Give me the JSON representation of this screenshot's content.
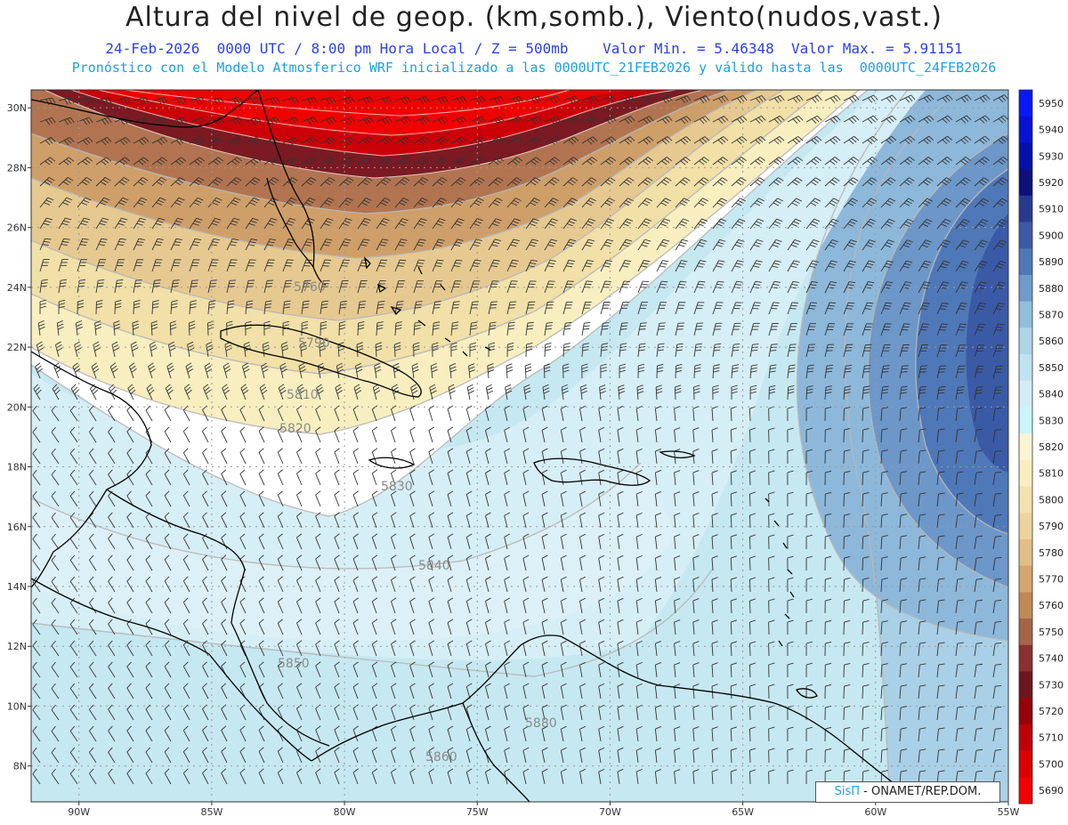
{
  "title": "Altura del nivel de geop. (km,somb.), Viento(nudos,vast.)",
  "subtitle1": "24-Feb-2026  0000 UTC / 8:00 pm Hora Local / Z = 500mb    Valor Min. = 5.46348  Valor Max. = 5.91151",
  "subtitle2": "Pronóstico con el Modelo Atmosferico WRF inicializado a las 0000UTC_21FEB2026 y válido hasta las  0000UTC_24FEB2026",
  "credit": {
    "brand": "SisΠ",
    "text": "- ONAMET/REP.DOM."
  },
  "axes": {
    "lat_ticks": [
      "30N",
      "28N",
      "26N",
      "24N",
      "22N",
      "20N",
      "18N",
      "16N",
      "14N",
      "12N",
      "10N",
      "8N"
    ],
    "lat_values": [
      30,
      28,
      26,
      24,
      22,
      20,
      18,
      16,
      14,
      12,
      10,
      8
    ],
    "lon_ticks": [
      "90W",
      "85W",
      "80W",
      "75W",
      "70W",
      "65W",
      "60W",
      "55W"
    ],
    "lon_values": [
      -90,
      -85,
      -80,
      -75,
      -70,
      -65,
      -60,
      -55
    ],
    "lat_range": [
      6.8,
      30.6
    ],
    "lon_range": [
      -91.8,
      -55.0
    ]
  },
  "colorbar": {
    "levels": [
      5950,
      5940,
      5930,
      5920,
      5910,
      5900,
      5890,
      5880,
      5870,
      5860,
      5850,
      5840,
      5830,
      5820,
      5810,
      5800,
      5790,
      5780,
      5770,
      5760,
      5750,
      5740,
      5730,
      5720,
      5710,
      5700,
      5690
    ],
    "colors": [
      "#0a18f5",
      "#0713d0",
      "#0510a8",
      "#10107a",
      "#2a3990",
      "#3b5ba8",
      "#4e78b8",
      "#6f9acb",
      "#92bede",
      "#aed6e9",
      "#c0e3ef",
      "#d3edf6",
      "#c9f5fb",
      "#fbf4d4",
      "#f8eec0",
      "#f2e2ac",
      "#ecd49c",
      "#e2bf86",
      "#d2a66c",
      "#c08a55",
      "#a56446",
      "#8b3032",
      "#6e1620",
      "#96000a",
      "#c00008",
      "#dc0004",
      "#f40000"
    ]
  },
  "contour_labels": [
    "5760",
    "5790",
    "5810",
    "5820",
    "5830",
    "5840",
    "5850",
    "5860",
    "5880"
  ],
  "colors": {
    "title": "#222222",
    "subtitle1": "#2a3ff0",
    "subtitle2": "#1aa0e8",
    "coast": "#000000",
    "grid": "#9a9a9a"
  }
}
